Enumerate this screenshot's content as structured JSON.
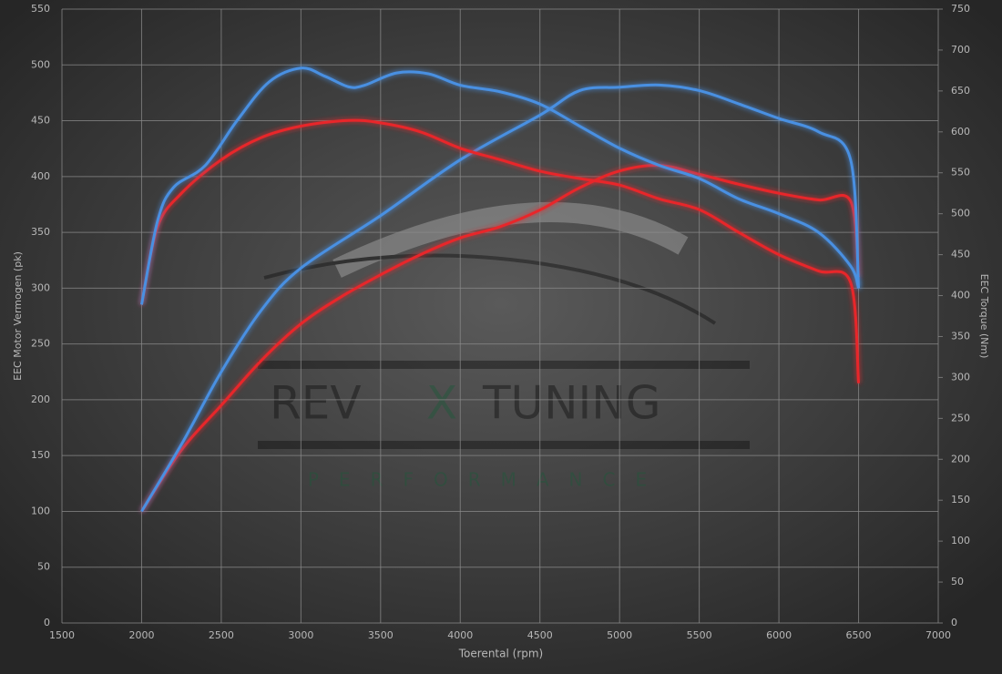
{
  "chart_data": {
    "type": "line",
    "xlabel": "Toerental (rpm)",
    "ylabel": "EEC Motor Vermogen (pk)",
    "y2label": "EEC Torque (Nm)",
    "watermark": [
      "REV",
      "X",
      "TUNING"
    ],
    "watermark_sub": "PERFORMANCE",
    "xlim": [
      1500,
      7000
    ],
    "xticks": [
      1500,
      2000,
      2500,
      3000,
      3500,
      4000,
      4500,
      5000,
      5500,
      6000,
      6500,
      7000
    ],
    "ylim": [
      0,
      550
    ],
    "yticks": [
      0,
      50,
      100,
      150,
      200,
      250,
      300,
      350,
      400,
      450,
      500,
      550
    ],
    "y2lim": [
      0,
      750
    ],
    "y2ticks": [
      0,
      50,
      100,
      150,
      200,
      250,
      300,
      350,
      400,
      450,
      500,
      550,
      600,
      650,
      700,
      750
    ],
    "grid": true,
    "series": [
      {
        "color": "#e8262a",
        "x": [
          2000,
          2250,
          2500,
          2750,
          3000,
          3250,
          3500,
          3750,
          4000,
          4250,
          4500,
          4750,
          5000,
          5250,
          5500,
          5750,
          6000,
          6250,
          6450,
          6500
        ],
        "values": [
          100,
          155,
          195,
          235,
          268,
          292,
          312,
          330,
          345,
          355,
          370,
          390,
          405,
          410,
          402,
          393,
          385,
          379,
          378,
          310
        ]
      },
      {
        "color": "#4a90e2",
        "x": [
          2000,
          2250,
          2500,
          2750,
          3000,
          3500,
          4000,
          4500,
          4750,
          5000,
          5250,
          5500,
          5750,
          6000,
          6250,
          6450,
          6500
        ],
        "values": [
          100,
          160,
          225,
          280,
          318,
          365,
          415,
          455,
          477,
          480,
          482,
          477,
          465,
          452,
          440,
          415,
          300
        ]
      },
      {
        "color": "#e8262a",
        "axis": "y2",
        "x": [
          2000,
          2100,
          2250,
          2500,
          2750,
          3000,
          3300,
          3500,
          3750,
          4000,
          4250,
          4500,
          4750,
          5000,
          5250,
          5500,
          5750,
          6000,
          6250,
          6450,
          6500
        ],
        "values": [
          389,
          484,
          525,
          566,
          593,
          607,
          614,
          611,
          600,
          580,
          566,
          552,
          543,
          535,
          518,
          505,
          477,
          450,
          430,
          416,
          293
        ]
      },
      {
        "color": "#4a90e2",
        "axis": "y2",
        "x": [
          2000,
          2100,
          2200,
          2400,
          2600,
          2800,
          3000,
          3150,
          3300,
          3400,
          3600,
          3800,
          4000,
          4250,
          4500,
          4750,
          5000,
          5250,
          5500,
          5750,
          6000,
          6250,
          6450,
          6500
        ],
        "values": [
          389,
          491,
          532,
          559,
          614,
          661,
          678,
          668,
          655,
          657,
          672,
          671,
          657,
          649,
          634,
          607,
          580,
          559,
          543,
          518,
          500,
          477,
          436,
          409
        ]
      }
    ]
  }
}
